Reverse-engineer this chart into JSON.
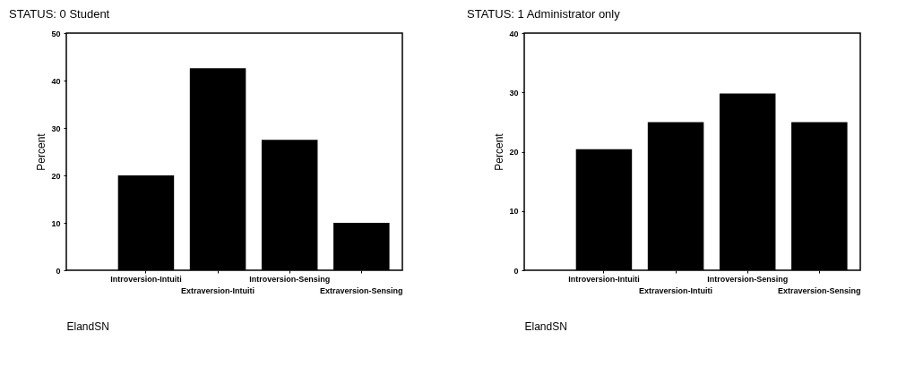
{
  "chart_data": [
    {
      "type": "bar",
      "title": "STATUS:     0  Student",
      "xlabel": "ElandSN",
      "ylabel": "Percent",
      "categories": [
        "Introversion-Intuiti",
        "Extraversion-Intuiti",
        "Introversion-Sensing",
        "Extraversion-Sensing"
      ],
      "values": [
        20,
        42.6,
        27.5,
        10
      ],
      "color": "#000000",
      "ylim": [
        0,
        50
      ],
      "yticks": [
        0,
        10,
        20,
        30,
        40,
        50
      ]
    },
    {
      "type": "bar",
      "title": "STATUS:     1  Administrator only",
      "xlabel": "ElandSN",
      "ylabel": "Percent",
      "categories": [
        "Introversion-Intuiti",
        "Extraversion-Intuiti",
        "Introversion-Sensing",
        "Extraversion-Sensing"
      ],
      "values": [
        20.4,
        25,
        29.8,
        25
      ],
      "color": "#000000",
      "ylim": [
        0,
        40
      ],
      "yticks": [
        0,
        10,
        20,
        30,
        40
      ]
    }
  ]
}
